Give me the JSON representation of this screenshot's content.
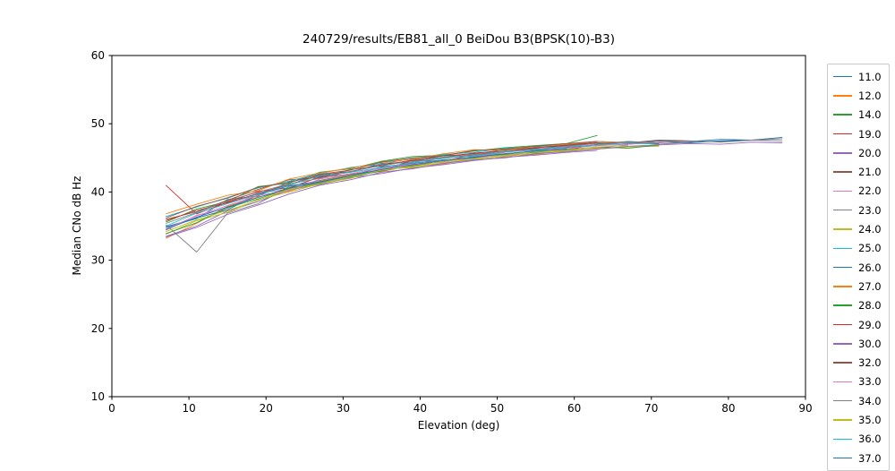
{
  "chart_data": {
    "type": "line",
    "title": "240729/results/EB81_all_0 BeiDou B3(BPSK(10)-B3)",
    "xlabel": "Elevation (deg)",
    "ylabel": "Median CNo dB Hz",
    "xlim": [
      0,
      90
    ],
    "ylim": [
      10,
      60
    ],
    "xticks": [
      0,
      10,
      20,
      30,
      40,
      50,
      60,
      70,
      80,
      90
    ],
    "yticks": [
      10,
      20,
      30,
      40,
      50,
      60
    ],
    "grid": false,
    "legend_position": "right-outside",
    "x_start": 7,
    "x_step": 4,
    "palette": [
      "#1f77b4",
      "#ff7f0e",
      "#2ca02c",
      "#d62728",
      "#9467bd",
      "#8c564b",
      "#e377c2",
      "#7f7f7f",
      "#bcbd22",
      "#17becf"
    ],
    "series": [
      {
        "name": "11.0",
        "color": "#1f77b4",
        "values": [
          34.8,
          36.1,
          38.9,
          39.4,
          41.5,
          42.3,
          42.9,
          44.2,
          44.3,
          45.4,
          45.2,
          46.3,
          46.2,
          46.9,
          47.2,
          47.1,
          47.5,
          47.4,
          47.7,
          47.6,
          48.0
        ]
      },
      {
        "name": "12.0",
        "color": "#ff7f0e",
        "values": [
          33.2,
          35.4,
          37.9,
          39.3,
          40.1,
          41.6,
          42.5,
          43.0,
          43.9,
          44.1,
          45.0,
          45.4,
          45.5,
          46.1,
          46.3,
          46.6,
          46.8
        ]
      },
      {
        "name": "14.0",
        "color": "#2ca02c",
        "values": [
          35.6,
          37.5,
          38.6,
          40.8,
          41.3,
          42.9,
          43.4,
          44.5,
          45.2,
          45.4,
          46.0,
          46.5,
          46.8,
          47.1,
          48.3
        ]
      },
      {
        "name": "19.0",
        "color": "#d62728",
        "values": [
          41.0,
          36.8,
          38.5,
          40.1,
          40.6,
          42.2,
          42.6,
          43.2,
          44.6,
          44.5,
          45.5,
          45.8,
          46.4,
          46.2,
          47.0,
          47.3,
          47.1
        ]
      },
      {
        "name": "20.0",
        "color": "#9467bd",
        "values": [
          33.5,
          35.0,
          37.2,
          38.6,
          40.3,
          41.1,
          42.1,
          42.7,
          43.5,
          44.0,
          44.6,
          45.1,
          45.4,
          45.8,
          46.1
        ]
      },
      {
        "name": "21.0",
        "color": "#8c564b",
        "values": [
          36.0,
          37.1,
          38.8,
          40.4,
          41.8,
          42.1,
          43.3,
          43.8,
          44.7,
          45.3,
          45.6,
          46.2,
          46.5,
          46.9,
          47.4,
          47.2,
          47.6,
          47.5
        ]
      },
      {
        "name": "22.0",
        "color": "#e377c2",
        "values": [
          34.4,
          36.6,
          37.6,
          39.9,
          40.4,
          41.4,
          42.4,
          43.4,
          44.0,
          44.4,
          45.1,
          45.3,
          45.9,
          46.3,
          46.5,
          46.9
        ]
      },
      {
        "name": "23.0",
        "color": "#7f7f7f",
        "values": [
          35.2,
          31.2,
          36.9,
          38.3,
          40.8,
          41.7,
          42.6,
          43.1,
          44.4,
          44.9,
          45.4,
          45.6,
          46.0,
          46.6,
          46.9,
          47.2,
          47.0,
          47.3,
          47.4,
          47.6,
          47.5
        ]
      },
      {
        "name": "24.0",
        "color": "#bcbd22",
        "values": [
          33.8,
          35.8,
          37.0,
          38.9,
          40.0,
          41.2,
          42.0,
          43.3,
          43.6,
          44.3,
          44.8,
          45.2,
          45.7,
          46.0,
          46.4,
          46.6,
          46.7
        ]
      },
      {
        "name": "25.0",
        "color": "#17becf",
        "values": [
          36.4,
          37.8,
          39.2,
          40.6,
          41.6,
          42.7,
          43.6,
          44.1,
          44.9,
          45.5,
          45.8,
          46.4,
          46.6,
          47.0
        ]
      },
      {
        "name": "26.0",
        "color": "#1f77b4",
        "values": [
          34.9,
          36.2,
          37.4,
          39.6,
          40.9,
          41.5,
          42.3,
          43.7,
          44.2,
          44.7,
          45.0,
          45.9,
          46.1,
          46.5,
          46.8,
          47.0,
          47.3,
          47.2,
          47.5,
          47.6
        ]
      },
      {
        "name": "27.0",
        "color": "#ff7f0e",
        "values": [
          36.8,
          38.2,
          39.5,
          40.2,
          41.9,
          42.8,
          43.5,
          44.3,
          44.8,
          45.6,
          46.2,
          46.1,
          46.7,
          47.0,
          47.4,
          47.2
        ]
      },
      {
        "name": "28.0",
        "color": "#2ca02c",
        "values": [
          33.9,
          35.5,
          37.7,
          39.0,
          40.5,
          41.3,
          42.2,
          43.1,
          43.8,
          44.5,
          45.2,
          45.5,
          45.8,
          46.2,
          46.6,
          46.4,
          46.9
        ]
      },
      {
        "name": "29.0",
        "color": "#d62728",
        "values": [
          35.8,
          37.3,
          38.4,
          39.8,
          41.1,
          42.5,
          43.0,
          44.0,
          44.6,
          45.1,
          45.7,
          46.0,
          46.5,
          46.8,
          47.2
        ]
      },
      {
        "name": "30.0",
        "color": "#9467bd",
        "values": [
          33.4,
          34.8,
          36.7,
          38.1,
          39.7,
          41.0,
          41.8,
          42.9,
          43.4,
          44.2,
          44.7,
          45.0,
          45.6,
          45.9,
          46.3,
          46.7,
          46.9,
          47.1,
          47.0,
          47.3,
          47.2
        ]
      },
      {
        "name": "32.0",
        "color": "#8c564b",
        "values": [
          36.2,
          37.9,
          39.1,
          40.7,
          41.4,
          42.6,
          43.2,
          44.4,
          45.0,
          45.3,
          46.1,
          46.3,
          46.7,
          47.1,
          47.4
        ]
      },
      {
        "name": "33.0",
        "color": "#e377c2",
        "values": [
          34.6,
          36.5,
          38.0,
          39.5,
          40.2,
          41.9,
          42.7,
          43.5,
          44.1,
          44.6,
          45.2,
          45.8,
          46.2,
          46.4,
          46.8,
          47.0,
          47.3,
          47.4
        ]
      },
      {
        "name": "34.0",
        "color": "#7f7f7f",
        "values": [
          35.4,
          37.0,
          38.7,
          40.0,
          41.2,
          42.0,
          43.0,
          43.9,
          44.5,
          45.1,
          45.5,
          46.0,
          46.3,
          46.7,
          47.1,
          47.4,
          47.2,
          47.5,
          47.3,
          47.6,
          47.8
        ]
      },
      {
        "name": "35.0",
        "color": "#bcbd22",
        "values": [
          34.2,
          35.9,
          37.3,
          38.8,
          40.4,
          41.2,
          42.3,
          43.2,
          43.7,
          44.5,
          44.9,
          45.4,
          45.9,
          46.1,
          46.6,
          46.8
        ]
      },
      {
        "name": "36.0",
        "color": "#17becf",
        "values": [
          35.0,
          36.9,
          38.3,
          39.7,
          41.0,
          42.4,
          42.9,
          43.6,
          44.3,
          45.0,
          45.3,
          45.9,
          46.2,
          46.6,
          46.9,
          47.2,
          47.0
        ]
      },
      {
        "name": "37.0",
        "color": "#1f77b4",
        "values": [
          34.5,
          36.3,
          37.8,
          39.2,
          40.6,
          41.5,
          42.4,
          43.3,
          44.0,
          44.6,
          45.1,
          45.6,
          46.0,
          46.3
        ]
      }
    ]
  }
}
